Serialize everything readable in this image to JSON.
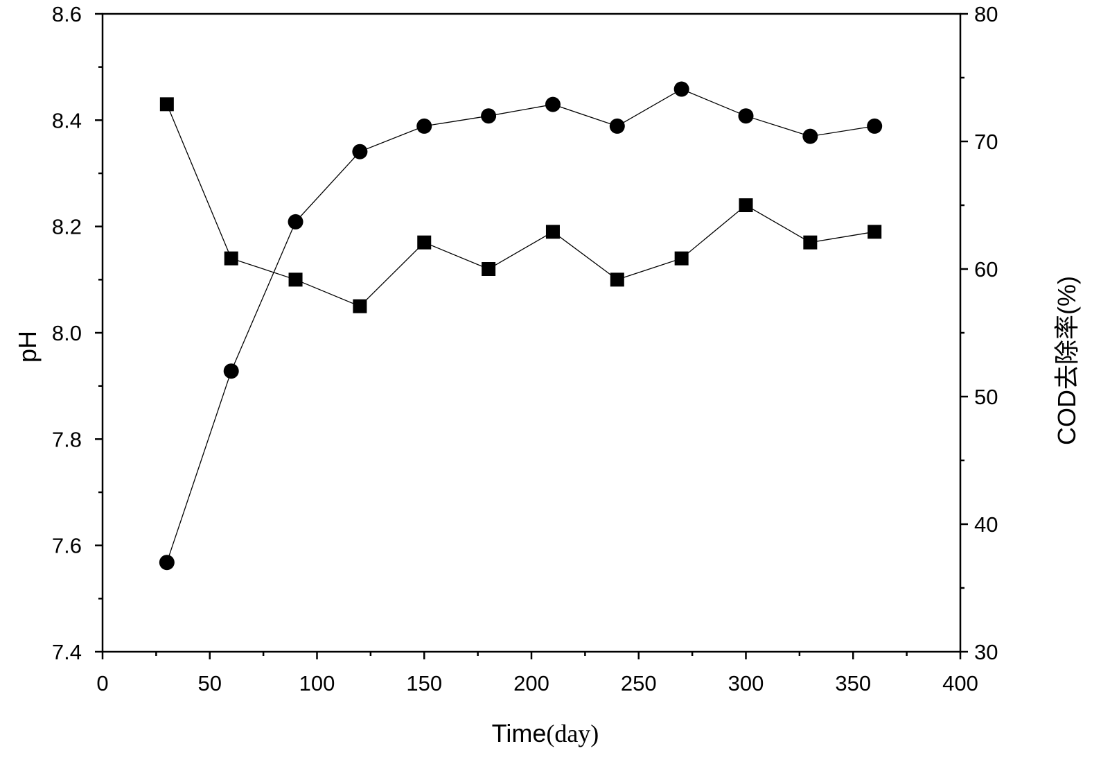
{
  "chart_data": {
    "type": "line",
    "x": [
      30,
      60,
      90,
      120,
      150,
      180,
      210,
      240,
      270,
      300,
      330,
      360
    ],
    "xlabel_main": "Time",
    "xlabel_unit": "(day)",
    "ylabel_left": "pH",
    "ylabel_right": "COD去除率(%)",
    "xlim": [
      0,
      400
    ],
    "ylim_left": [
      7.4,
      8.6
    ],
    "ylim_right": [
      30,
      80
    ],
    "x_ticks": [
      0,
      50,
      100,
      150,
      200,
      250,
      300,
      350,
      400
    ],
    "x_tick_labels": [
      "0",
      "50",
      "100",
      "150",
      "200",
      "250",
      "300",
      "350",
      "400"
    ],
    "y_left_ticks": [
      7.4,
      7.6,
      7.8,
      8.0,
      8.2,
      8.4,
      8.6
    ],
    "y_left_tick_labels": [
      "7.4",
      "7.6",
      "7.8",
      "8.0",
      "8.2",
      "8.4",
      "8.6"
    ],
    "y_right_ticks": [
      30,
      40,
      50,
      60,
      70,
      80
    ],
    "y_right_tick_labels": [
      "30",
      "40",
      "50",
      "60",
      "70",
      "80"
    ],
    "grid": false,
    "series": [
      {
        "axis": "left",
        "marker": "square",
        "values": [
          8.43,
          8.14,
          8.1,
          8.05,
          8.17,
          8.12,
          8.19,
          8.1,
          8.14,
          8.24,
          8.17,
          8.19
        ]
      },
      {
        "axis": "right",
        "marker": "circle",
        "values": [
          37,
          52,
          63.7,
          69.2,
          71.2,
          72,
          72.9,
          71.2,
          74.1,
          72,
          70.4,
          71.2
        ]
      }
    ]
  }
}
